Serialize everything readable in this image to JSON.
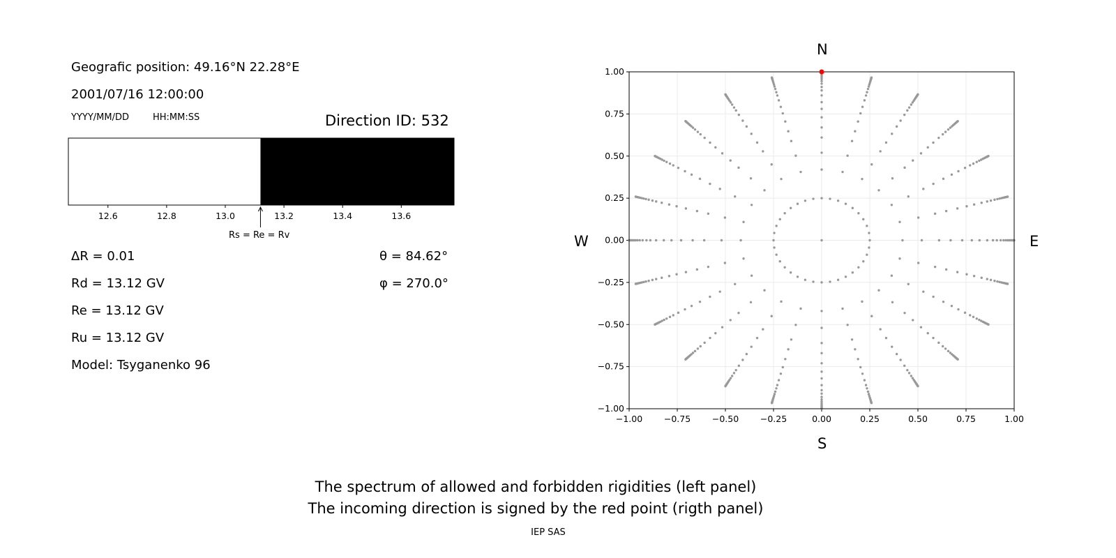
{
  "left_panel": {
    "position": "Geografic position: 49.16°N 22.28°E",
    "datetime": "2001/07/16 12:00:00",
    "date_format": "YYYY/MM/DD",
    "time_format": "HH:MM:SS",
    "direction_id": "Direction ID: 532",
    "delta_r": "ΔR = 0.01",
    "rd": "Rd = 13.12 GV",
    "re": "Re = 13.12 GV",
    "ru": "Ru = 13.12 GV",
    "model": "Model: Tsyganenko 96",
    "theta": "θ = 84.62°",
    "phi": "φ = 270.0°",
    "arrow_label": "Rs = Re = Rv"
  },
  "right_panel": {
    "north": "N",
    "south": "S",
    "west": "W",
    "east": "E"
  },
  "caption": {
    "line1": "The spectrum of allowed and forbidden rigidities (left panel)",
    "line2": "The incoming direction is signed by the red point (rigth panel)",
    "credit": "IEP SAS"
  },
  "chart_data": [
    {
      "type": "bar",
      "xlim": [
        12.465,
        13.78
      ],
      "xticks": [
        "12.6",
        "12.8",
        "13.0",
        "13.2",
        "13.4",
        "13.6"
      ],
      "segments": [
        {
          "from": 12.465,
          "to": 13.12,
          "color": "#ffffff"
        },
        {
          "from": 13.12,
          "to": 13.78,
          "color": "#000000"
        }
      ],
      "marker_at": 13.12
    },
    {
      "type": "scatter",
      "xlim": [
        -1,
        1
      ],
      "ylim": [
        -1,
        1
      ],
      "xticks": [
        "−1.00",
        "−0.75",
        "−0.50",
        "−0.25",
        "0.00",
        "0.25",
        "0.50",
        "0.75",
        "1.00"
      ],
      "yticks": [
        "1.00",
        "0.75",
        "0.50",
        "0.25",
        "0.00",
        "−0.25",
        "−0.50",
        "−0.75",
        "−1.00"
      ],
      "grid": true,
      "point_color": "#999999",
      "spoke_angles_deg_step": 15,
      "spoke_radii": [
        0.42,
        0.52,
        0.61,
        0.67,
        0.73,
        0.78,
        0.82,
        0.86,
        0.89,
        0.91,
        0.93,
        0.945,
        0.957,
        0.967,
        0.975,
        0.982,
        0.988,
        0.993,
        0.997,
        1.0
      ],
      "inner_ring": {
        "radius": 0.25,
        "step_deg": 10
      },
      "center_point": [
        0,
        0
      ],
      "highlight": {
        "x": 0.0,
        "y": 1.0,
        "color": "#ff0000"
      }
    }
  ]
}
